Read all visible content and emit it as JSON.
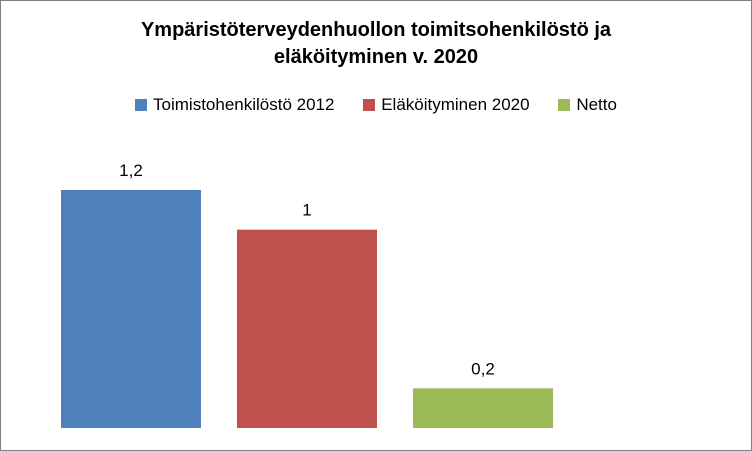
{
  "chart_data": {
    "type": "bar",
    "title_lines": [
      "Ympäristöterveydenhuollon toimitsohenkilöstö ja",
      "eläköityminen v. 2020"
    ],
    "categories": [
      "Toimistohenkilöstö 2012",
      "Eläköityminen 2020",
      "Netto"
    ],
    "values": [
      1.2,
      1,
      0.2
    ],
    "value_labels": [
      "1,2",
      "1",
      "0,2"
    ],
    "colors": [
      "#4f81bd",
      "#c0504d",
      "#9bbb59"
    ],
    "legend_position": "top",
    "ylim": [
      0,
      1.2
    ],
    "grid": false,
    "xlabel": "",
    "ylabel": ""
  }
}
